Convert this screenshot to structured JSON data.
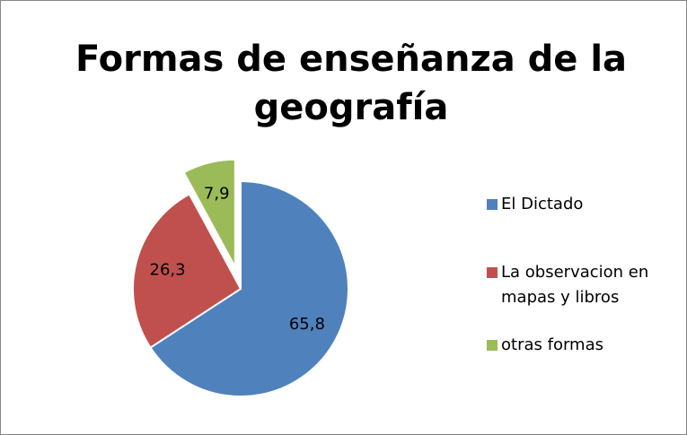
{
  "chart_data": {
    "type": "pie",
    "title": "Formas de enseñanza de la geografía",
    "categories": [
      "El Dictado",
      "La observacion en mapas y libros",
      "otras formas"
    ],
    "values": [
      65.8,
      26.3,
      7.9
    ],
    "value_labels": [
      "65,8",
      "26,3",
      "7,9"
    ],
    "colors": [
      "#4f81bd",
      "#c0504d",
      "#9bbb59"
    ],
    "exploded": [
      false,
      false,
      true
    ],
    "legend": "right"
  }
}
